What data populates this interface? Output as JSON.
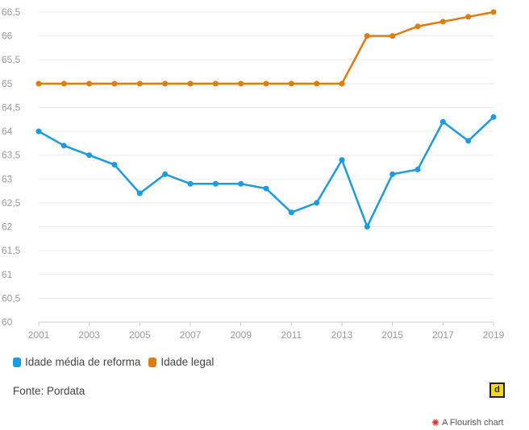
{
  "chart_data": {
    "type": "line",
    "x": [
      2001,
      2002,
      2003,
      2004,
      2005,
      2006,
      2007,
      2008,
      2009,
      2010,
      2011,
      2012,
      2013,
      2014,
      2015,
      2016,
      2017,
      2018,
      2019
    ],
    "x_tick_labels": [
      "2001",
      "2003",
      "2005",
      "2007",
      "2009",
      "2011",
      "2013",
      "2015",
      "2017",
      "2019"
    ],
    "y_tick_labels": [
      "60",
      "60,5",
      "61",
      "61,5",
      "62",
      "62,5",
      "63",
      "63,5",
      "64",
      "64,5",
      "65",
      "65,5",
      "66",
      "66,5"
    ],
    "ylim": [
      60,
      66.5
    ],
    "grid": true,
    "legend_position": "bottom-left",
    "series": [
      {
        "name": "Idade média de reforma",
        "color": "#1b9be0",
        "values": [
          64.0,
          63.7,
          63.5,
          63.3,
          62.7,
          63.1,
          62.9,
          62.9,
          62.9,
          62.8,
          62.3,
          62.5,
          63.4,
          62.0,
          63.1,
          63.2,
          64.2,
          63.8,
          64.3
        ]
      },
      {
        "name": "Idade legal",
        "color": "#e07b0f",
        "values": [
          65,
          65,
          65,
          65,
          65,
          65,
          65,
          65,
          65,
          65,
          65,
          65,
          65,
          66,
          66,
          66.2,
          66.3,
          66.4,
          66.5
        ]
      }
    ]
  },
  "source_text": "Fonte: Pordata",
  "flourish_logo_letter": "d",
  "flourish_credit": "A Flourish chart",
  "flourish_mark": "✺"
}
